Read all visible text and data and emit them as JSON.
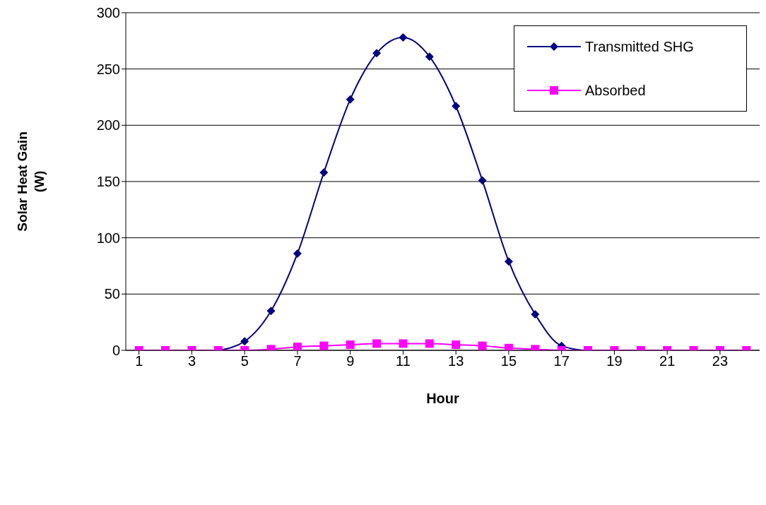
{
  "chart_data": {
    "type": "line",
    "xlabel": "Hour",
    "ylabel": "Solar Heat Gain (W)",
    "x": [
      1,
      2,
      3,
      4,
      5,
      6,
      7,
      8,
      9,
      10,
      11,
      12,
      13,
      14,
      15,
      16,
      17,
      18,
      19,
      20,
      21,
      22,
      23,
      24
    ],
    "series": [
      {
        "name": "Transmitted SHG",
        "color": "#000080",
        "marker": "diamond",
        "values": [
          null,
          null,
          null,
          0,
          8,
          35,
          86,
          158,
          223,
          264,
          278,
          261,
          217,
          151,
          79,
          32,
          4,
          0,
          0,
          null,
          null,
          null,
          null,
          null
        ]
      },
      {
        "name": "Absorbed",
        "color": "#ff00ff",
        "marker": "square",
        "values": [
          0,
          0,
          0,
          0,
          0,
          1,
          3,
          4,
          5,
          6,
          6,
          6,
          5,
          4,
          2,
          1,
          0,
          0,
          0,
          0,
          0,
          0,
          0,
          0
        ]
      }
    ],
    "xlim": [
      0.5,
      24.5
    ],
    "xticks": [
      1,
      3,
      5,
      7,
      9,
      11,
      13,
      15,
      17,
      19,
      21,
      23
    ],
    "ylim": [
      0,
      300
    ],
    "yticks": [
      0,
      50,
      100,
      150,
      200,
      250,
      300
    ],
    "grid": "y",
    "legend": "top right",
    "line_style": "solid"
  }
}
